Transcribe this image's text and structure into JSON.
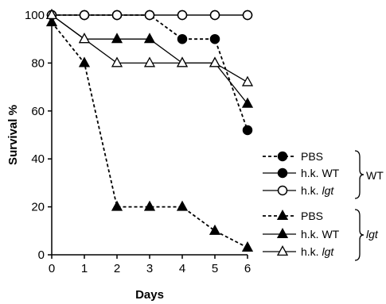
{
  "chart_data": {
    "type": "line",
    "xlabel": "Days",
    "ylabel": "Survival %",
    "xlim": [
      0,
      6
    ],
    "ylim": [
      0,
      100
    ],
    "x_ticks": [
      "0",
      "1",
      "2",
      "3",
      "4",
      "5",
      "6"
    ],
    "y_ticks": [
      "0",
      "20",
      "40",
      "60",
      "80",
      "100"
    ],
    "grid": false,
    "legend_position": "right",
    "series": [
      {
        "group": "WT",
        "name": "PBS",
        "name_suffix": "",
        "marker": "circle-filled",
        "dash": "dashed",
        "x": [
          0,
          1,
          2,
          3,
          4,
          5,
          6
        ],
        "y": [
          100,
          100,
          100,
          100,
          90,
          90,
          52
        ]
      },
      {
        "group": "WT",
        "name": "h.k. WT",
        "name_suffix": "",
        "marker": "circle-filled",
        "dash": "solid",
        "x": [
          0,
          1,
          2,
          3,
          4,
          5,
          6
        ],
        "y": [
          100,
          100,
          100,
          100,
          100,
          100,
          100
        ]
      },
      {
        "group": "WT",
        "name": "h.k. ",
        "name_suffix": "lgt",
        "marker": "circle-open",
        "dash": "solid",
        "x": [
          0,
          1,
          2,
          3,
          4,
          5,
          6
        ],
        "y": [
          100,
          100,
          100,
          100,
          100,
          100,
          100
        ]
      },
      {
        "group": "lgt",
        "name": "PBS",
        "name_suffix": "",
        "marker": "triangle-filled",
        "dash": "dashed",
        "x": [
          0,
          1,
          2,
          3,
          4,
          5,
          6
        ],
        "y": [
          97,
          80,
          20,
          20,
          20,
          10,
          3
        ]
      },
      {
        "group": "lgt",
        "name": "h.k. WT",
        "name_suffix": "",
        "marker": "triangle-filled",
        "dash": "solid",
        "x": [
          0,
          1,
          2,
          3,
          4,
          5,
          6
        ],
        "y": [
          100,
          90,
          90,
          90,
          80,
          80,
          63
        ]
      },
      {
        "group": "lgt",
        "name": "h.k. ",
        "name_suffix": "lgt",
        "marker": "triangle-open",
        "dash": "solid",
        "x": [
          0,
          1,
          2,
          3,
          4,
          5,
          6
        ],
        "y": [
          100,
          90,
          80,
          80,
          80,
          80,
          72
        ]
      }
    ],
    "groups": [
      {
        "label": "WT",
        "italic": false
      },
      {
        "label": "lgt",
        "italic": true
      }
    ]
  }
}
